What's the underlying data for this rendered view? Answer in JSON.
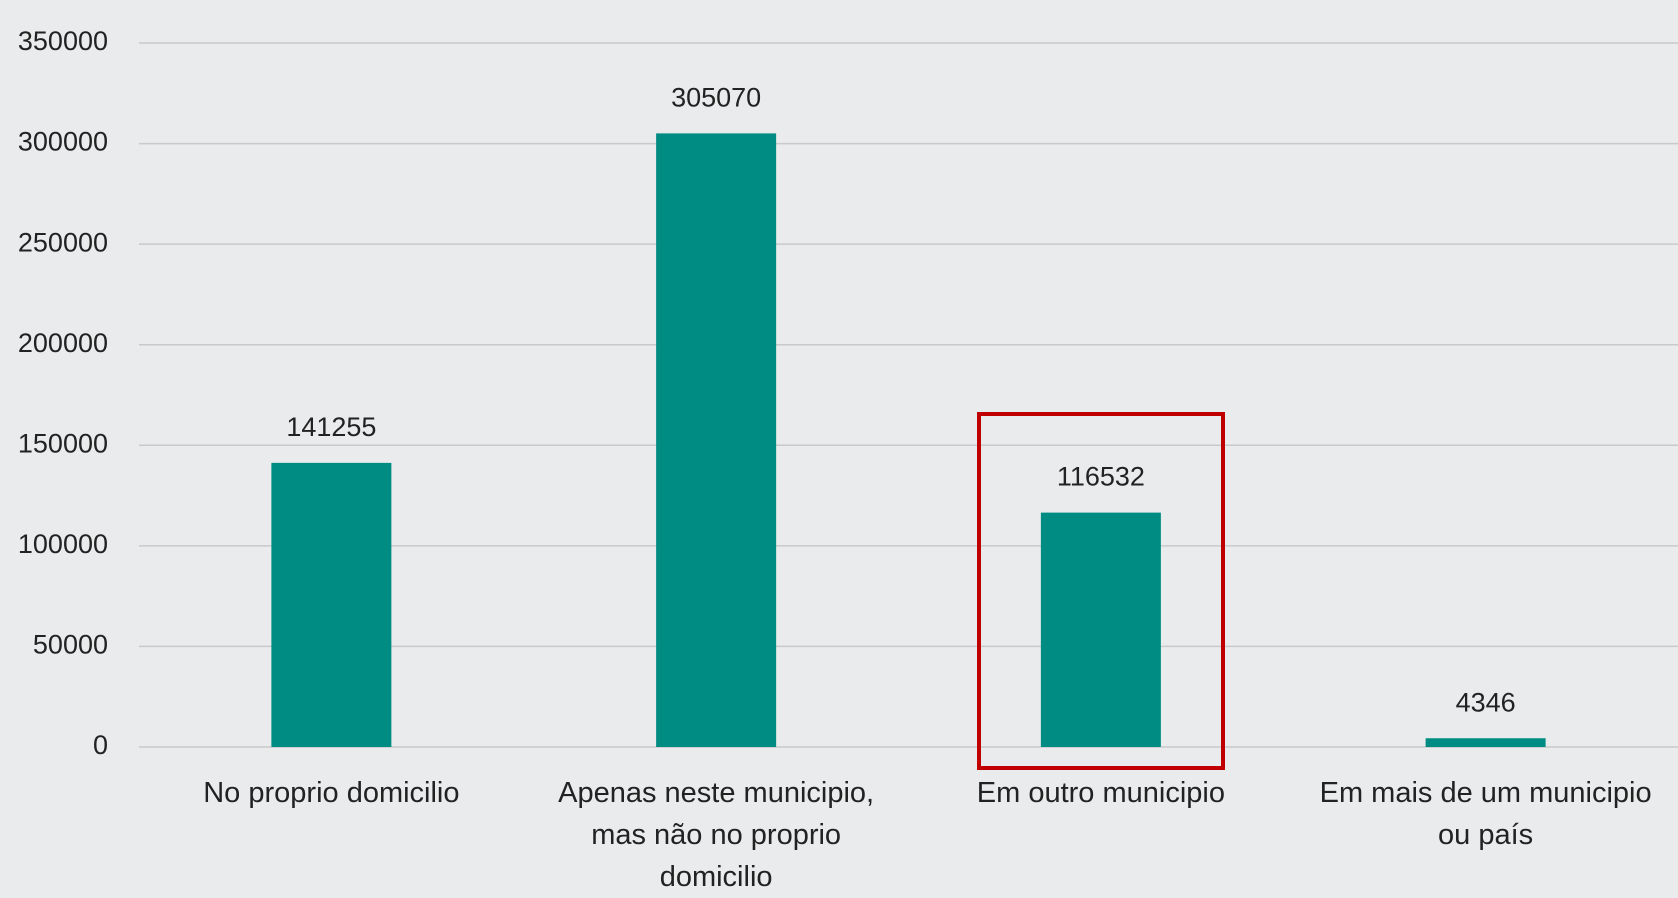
{
  "chart_data": {
    "type": "bar",
    "categories": [
      "No proprio domicilio",
      "Apenas neste municipio, mas não no proprio domicilio",
      "Em outro municipio",
      "Em mais de um municipio ou país"
    ],
    "values": [
      141255,
      305070,
      116532,
      4346
    ],
    "color": "#008c82",
    "ylim": [
      0,
      350000
    ],
    "yticks": [
      0,
      50000,
      100000,
      150000,
      200000,
      250000,
      300000,
      350000
    ],
    "grid": true
  }
}
